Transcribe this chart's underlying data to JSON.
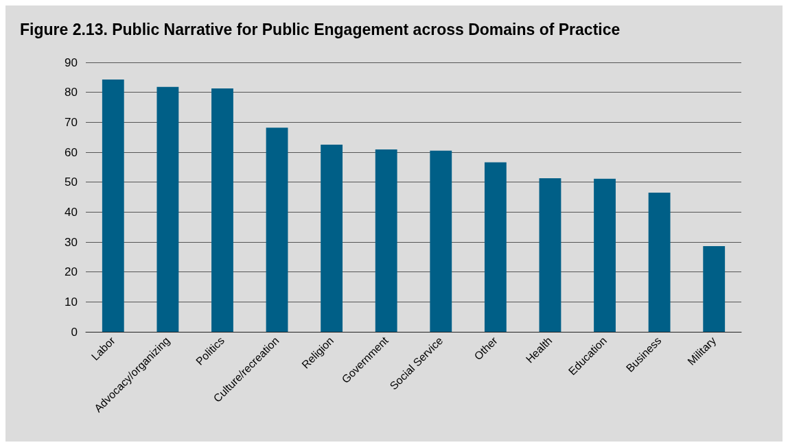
{
  "chart_data": {
    "type": "bar",
    "title": "Figure 2.13. Public Narrative for Public Engagement across Domains of Practice",
    "categories": [
      "Labor",
      "Advocacy/organizing",
      "Politics",
      "Culture/recreation",
      "Religion",
      "Government",
      "Social Service",
      "Other",
      "Health",
      "Education",
      "Business",
      "Military"
    ],
    "values": [
      84.3,
      81.8,
      81.3,
      68.2,
      62.5,
      60.9,
      60.5,
      56.6,
      51.3,
      51.1,
      46.5,
      28.6
    ],
    "color": "#005f87",
    "ylim": [
      0,
      90
    ],
    "yticks": [
      0,
      10,
      20,
      30,
      40,
      50,
      60,
      70,
      80,
      90
    ],
    "grid": "y"
  }
}
